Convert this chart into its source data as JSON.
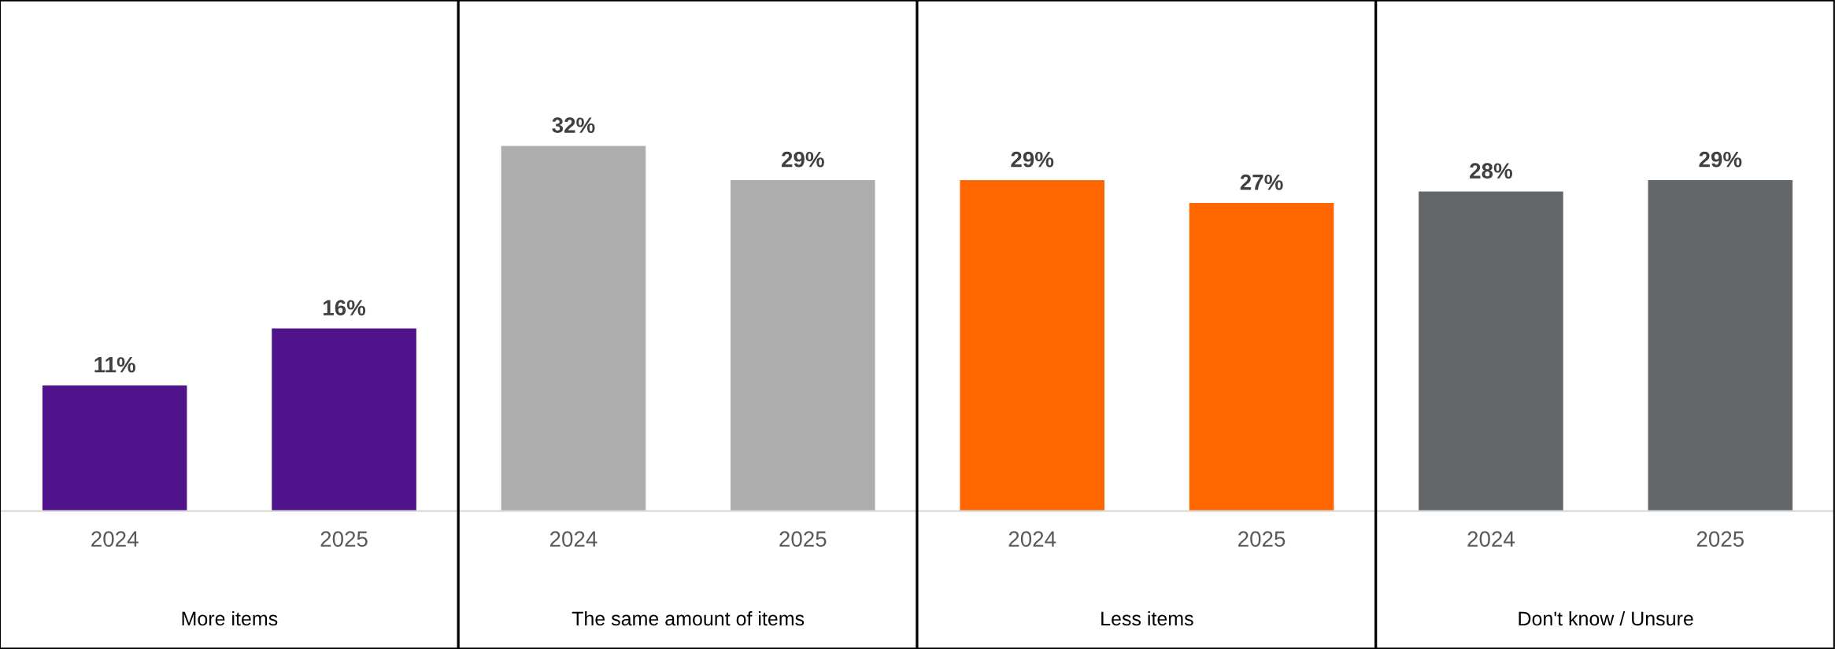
{
  "chart_data": [
    {
      "type": "bar",
      "categories": [
        "2024",
        "2025"
      ],
      "values": [
        11,
        16
      ],
      "value_labels": [
        "11%",
        "16%"
      ],
      "color": "#4f148c",
      "xlabel": "More items"
    },
    {
      "type": "bar",
      "categories": [
        "2024",
        "2025"
      ],
      "values": [
        32,
        29
      ],
      "value_labels": [
        "32%",
        "29%"
      ],
      "color": "#adadad",
      "xlabel": "The same amount of items"
    },
    {
      "type": "bar",
      "categories": [
        "2024",
        "2025"
      ],
      "values": [
        29,
        27
      ],
      "value_labels": [
        "29%",
        "27%"
      ],
      "color": "#ff6600",
      "xlabel": "Less items"
    },
    {
      "type": "bar",
      "categories": [
        "2024",
        "2025"
      ],
      "values": [
        28,
        29
      ],
      "value_labels": [
        "28%",
        "29%"
      ],
      "color": "#636668",
      "xlabel": "Don't know / Unsure"
    }
  ]
}
